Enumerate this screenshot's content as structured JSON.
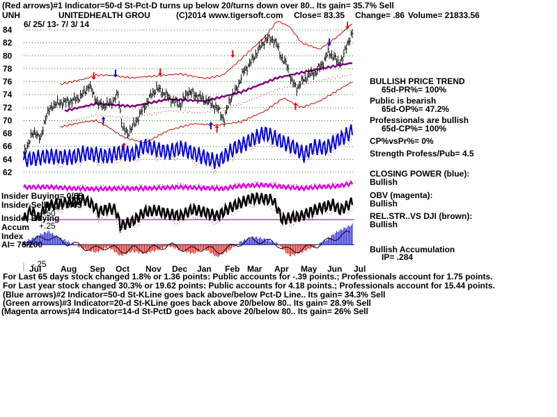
{
  "header": {
    "line1": "(Red arrows)#1 Indicator=50-d St-Pct-D turns up below 20/turns down over 80.. Its gain= 35.7% Sell",
    "ticker": "UNH",
    "company": "UNITEDHEALTH GROU",
    "source": "(C)2014 www.tigersoft.com",
    "close": "Close= 83.35",
    "change": "Change= .86",
    "volume": "Volume= 21833.56",
    "date_range": "6/ 25/ 13- 7/ 3/ 14"
  },
  "right_panel": [
    {
      "text": "BULLISH PRICE TREND",
      "bold": true
    },
    {
      "text": "65d-PR%= 100%",
      "bold": true
    },
    {
      "text": "Public is bearish",
      "bold": true
    },
    {
      "text": "65d-OP%= 47.2%",
      "bold": true
    },
    {
      "text": "Professionals are bullish",
      "bold": true
    },
    {
      "text": "65d-CP%= 100%",
      "bold": true
    },
    {
      "text": "CP%vsPr%= 0%",
      "bold": true
    },
    {
      "text": "Strength Profess/Pub= 4.5",
      "bold": true
    },
    {
      "text": "CLOSING POWER (blue):",
      "bold": true
    },
    {
      "text": "Bullish",
      "bold": true
    },
    {
      "text": "OBV (magenta):",
      "bold": true
    },
    {
      "text": "Bullish",
      "bold": true
    },
    {
      "text": "REL.STR..VS DJI (brown):",
      "bold": true
    },
    {
      "text": "Bullish",
      "bold": true
    },
    {
      "text": "Bullish Accumulation",
      "bold": true
    },
    {
      "text": "IP= .284",
      "bold": true
    }
  ],
  "left_labels": {
    "insider_buying_1": "Insider Buying= 0/65",
    "insider_selling": "Insider Selling= 0/65",
    "insider_buying_2": "Insider Buying",
    "accum": "Accum",
    "accum_val": "+.25",
    "index": "Index",
    "ai": "AI= 76/200",
    "plus50": "+.50",
    "minus25": "-.25"
  },
  "footer": [
    "For Last 65 days stock changed  1.8% or  1.36 points:  Public accounts for -.39 points.;  Professionals account for  1.75 points.",
    "For Last year stock changed  30.3% or  19.62 points:  Public accounts for  4.18 points.;  Professionals account for  15.44 points.",
    "(Blue arrows)#2 Indicator=50-d St-KLine goes back above/below Pct-D Line.. Its gain= 34.3% Sell",
    "(Green arrows)#3 Indicator=20-d St-KLine goes back above 20/below 80.. Its gain= 28.9% Sell",
    "(Magenta arrows)#4 Indicator=14-d St-PctD goes back above 20/below 80.. Its gain= 26% Sell"
  ],
  "colors": {
    "price": "#000000",
    "band": "#cc0000",
    "ma": "#800080",
    "closing_power": "#0000dd",
    "obv": "#e000e0",
    "rel_str": "#000000",
    "accum_pos": "#0000cc",
    "accum_neg": "#cc0000",
    "grid": "#008000",
    "zero_line": "#000080"
  },
  "chart_data": {
    "type": "line",
    "ylim": [
      62,
      84
    ],
    "y_ticks": [
      84,
      82,
      80,
      78,
      76,
      74,
      72,
      70,
      68,
      66,
      64,
      62
    ],
    "x_ticks": [
      "Jul",
      "Aug",
      "Sep",
      "Oct",
      "Nov",
      "Dec",
      "Jan",
      "Feb",
      "Mar",
      "Apr",
      "May",
      "Jun",
      "Jul"
    ],
    "grid": true,
    "price_anchors": [
      [
        0,
        64.8
      ],
      [
        6,
        67.5
      ],
      [
        10,
        68.3
      ],
      [
        14,
        67.0
      ],
      [
        18,
        70.5
      ],
      [
        24,
        72.4
      ],
      [
        32,
        72.8
      ],
      [
        40,
        73.0
      ],
      [
        48,
        73.8
      ],
      [
        54,
        75.4
      ],
      [
        58,
        74.0
      ],
      [
        62,
        72.5
      ],
      [
        68,
        72.3
      ],
      [
        74,
        73.0
      ],
      [
        78,
        74.0
      ],
      [
        82,
        68.8
      ],
      [
        86,
        68.0
      ],
      [
        92,
        69.5
      ],
      [
        98,
        71.5
      ],
      [
        104,
        73.5
      ],
      [
        110,
        75.0
      ],
      [
        116,
        74.2
      ],
      [
        124,
        73.0
      ],
      [
        130,
        72.5
      ],
      [
        136,
        74.5
      ],
      [
        144,
        73.8
      ],
      [
        150,
        73.2
      ],
      [
        156,
        72.5
      ],
      [
        162,
        71.5
      ],
      [
        166,
        70.0
      ],
      [
        170,
        73.0
      ],
      [
        176,
        74.8
      ],
      [
        182,
        77.5
      ],
      [
        188,
        79.0
      ],
      [
        194,
        80.8
      ],
      [
        200,
        82.5
      ],
      [
        206,
        82.6
      ],
      [
        210,
        81.5
      ],
      [
        214,
        79.5
      ],
      [
        218,
        78.5
      ],
      [
        222,
        76.0
      ],
      [
        226,
        75.0
      ],
      [
        230,
        76.0
      ],
      [
        236,
        77.0
      ],
      [
        242,
        77.5
      ],
      [
        248,
        79.0
      ],
      [
        252,
        80.5
      ],
      [
        256,
        80.0
      ],
      [
        260,
        79.0
      ],
      [
        264,
        79.5
      ],
      [
        268,
        82.0
      ],
      [
        272,
        83.35
      ]
    ],
    "ma_anchors": [
      [
        34,
        71.5
      ],
      [
        60,
        72.6
      ],
      [
        90,
        72.2
      ],
      [
        120,
        73.3
      ],
      [
        150,
        73.0
      ],
      [
        180,
        74.4
      ],
      [
        210,
        76.6
      ],
      [
        240,
        77.8
      ],
      [
        272,
        78.9
      ]
    ],
    "upper_band_anchors": [
      [
        30,
        75.6
      ],
      [
        50,
        76.4
      ],
      [
        60,
        77.0
      ],
      [
        70,
        77.0
      ],
      [
        90,
        76.6
      ],
      [
        110,
        76.9
      ],
      [
        130,
        77.2
      ],
      [
        150,
        76.5
      ],
      [
        165,
        77.0
      ],
      [
        180,
        79.5
      ],
      [
        200,
        83.0
      ],
      [
        210,
        85.4
      ],
      [
        220,
        84.5
      ],
      [
        230,
        82.0
      ],
      [
        245,
        81.0
      ],
      [
        260,
        83.0
      ],
      [
        272,
        85.0
      ]
    ],
    "lower_band_anchors": [
      [
        30,
        69.0
      ],
      [
        50,
        69.8
      ],
      [
        60,
        70.0
      ],
      [
        70,
        69.0
      ],
      [
        82,
        67.5
      ],
      [
        100,
        66.5
      ],
      [
        120,
        68.5
      ],
      [
        140,
        69.5
      ],
      [
        160,
        69.3
      ],
      [
        180,
        69.8
      ],
      [
        200,
        71.5
      ],
      [
        215,
        73.5
      ],
      [
        230,
        72.0
      ],
      [
        245,
        73.0
      ],
      [
        272,
        76.0
      ]
    ],
    "closing_power_anchors": [
      [
        0,
        0.45
      ],
      [
        20,
        0.52
      ],
      [
        40,
        0.5
      ],
      [
        50,
        0.58
      ],
      [
        60,
        0.55
      ],
      [
        70,
        0.52
      ],
      [
        80,
        0.6
      ],
      [
        90,
        0.55
      ],
      [
        100,
        0.72
      ],
      [
        110,
        0.65
      ],
      [
        120,
        0.6
      ],
      [
        130,
        0.68
      ],
      [
        140,
        0.58
      ],
      [
        150,
        0.5
      ],
      [
        160,
        0.42
      ],
      [
        165,
        0.5
      ],
      [
        175,
        0.68
      ],
      [
        182,
        0.74
      ],
      [
        190,
        0.85
      ],
      [
        200,
        0.96
      ],
      [
        205,
        0.9
      ],
      [
        215,
        0.78
      ],
      [
        225,
        0.68
      ],
      [
        232,
        0.55
      ],
      [
        240,
        0.7
      ],
      [
        250,
        0.68
      ],
      [
        260,
        0.82
      ],
      [
        265,
        0.88
      ],
      [
        272,
        1.0
      ]
    ],
    "obv_anchors": [
      [
        0,
        0.58
      ],
      [
        20,
        0.62
      ],
      [
        40,
        0.5
      ],
      [
        60,
        0.45
      ],
      [
        80,
        0.5
      ],
      [
        90,
        0.48
      ],
      [
        110,
        0.52
      ],
      [
        130,
        0.6
      ],
      [
        150,
        0.52
      ],
      [
        165,
        0.48
      ],
      [
        180,
        0.7
      ],
      [
        200,
        0.76
      ],
      [
        215,
        0.62
      ],
      [
        230,
        0.5
      ],
      [
        245,
        0.62
      ],
      [
        260,
        0.68
      ],
      [
        272,
        0.9
      ]
    ],
    "rel_str_anchors": [
      [
        0,
        0.25
      ],
      [
        6,
        0.5
      ],
      [
        12,
        0.3
      ],
      [
        20,
        0.62
      ],
      [
        30,
        0.68
      ],
      [
        40,
        0.72
      ],
      [
        50,
        0.78
      ],
      [
        58,
        0.62
      ],
      [
        62,
        0.45
      ],
      [
        70,
        0.55
      ],
      [
        76,
        0.52
      ],
      [
        80,
        0.1
      ],
      [
        90,
        0.2
      ],
      [
        100,
        0.45
      ],
      [
        110,
        0.5
      ],
      [
        120,
        0.4
      ],
      [
        130,
        0.35
      ],
      [
        140,
        0.52
      ],
      [
        150,
        0.45
      ],
      [
        160,
        0.35
      ],
      [
        170,
        0.55
      ],
      [
        180,
        0.7
      ],
      [
        190,
        0.82
      ],
      [
        200,
        0.8
      ],
      [
        206,
        0.78
      ],
      [
        210,
        0.55
      ],
      [
        214,
        0.25
      ],
      [
        220,
        0.3
      ],
      [
        230,
        0.35
      ],
      [
        240,
        0.5
      ],
      [
        250,
        0.6
      ],
      [
        256,
        0.65
      ],
      [
        262,
        0.5
      ],
      [
        268,
        0.62
      ],
      [
        272,
        0.72
      ]
    ],
    "accum_anchors": [
      [
        0,
        0.1
      ],
      [
        10,
        0.35
      ],
      [
        20,
        0.6
      ],
      [
        30,
        0.3
      ],
      [
        40,
        0.05
      ],
      [
        50,
        -0.2
      ],
      [
        60,
        -0.35
      ],
      [
        70,
        -0.1
      ],
      [
        80,
        -0.5
      ],
      [
        90,
        -0.3
      ],
      [
        100,
        -0.4
      ],
      [
        110,
        -0.25
      ],
      [
        120,
        -0.05
      ],
      [
        130,
        -0.25
      ],
      [
        140,
        -0.4
      ],
      [
        150,
        -0.2
      ],
      [
        160,
        -0.55
      ],
      [
        170,
        -0.25
      ],
      [
        180,
        0.15
      ],
      [
        190,
        0.35
      ],
      [
        200,
        0.25
      ],
      [
        210,
        0.05
      ],
      [
        220,
        -0.5
      ],
      [
        230,
        -0.35
      ],
      [
        240,
        -0.1
      ],
      [
        250,
        0.2
      ],
      [
        260,
        0.6
      ],
      [
        272,
        0.9
      ]
    ],
    "arrows": [
      {
        "color": "red",
        "dir": "down",
        "day": 58,
        "price": 76.6
      },
      {
        "color": "blue",
        "dir": "down",
        "day": 76,
        "price": 77.0
      },
      {
        "color": "red",
        "dir": "down",
        "day": 113,
        "price": 77.2
      },
      {
        "color": "red",
        "dir": "down",
        "day": 173,
        "price": 80.0
      },
      {
        "color": "blue",
        "dir": "down",
        "day": 253,
        "price": 81.8
      },
      {
        "color": "red",
        "dir": "down",
        "day": 268,
        "price": 84.4
      },
      {
        "color": "blue",
        "dir": "up",
        "day": 66,
        "price": 70.3
      },
      {
        "color": "red",
        "dir": "up",
        "day": 83,
        "price": 66.3
      },
      {
        "color": "blue",
        "dir": "up",
        "day": 155,
        "price": 69.5
      },
      {
        "color": "red",
        "dir": "up",
        "day": 160,
        "price": 69.0
      },
      {
        "color": "red",
        "dir": "up",
        "day": 225,
        "price": 72.5
      }
    ]
  }
}
